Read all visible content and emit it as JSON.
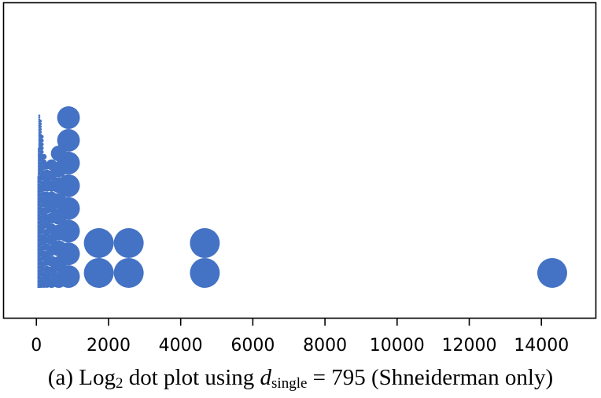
{
  "caption": {
    "prefix": "(a) Log",
    "base": "2",
    "middle": " dot plot using ",
    "var_symbol": "d",
    "var_subscript": "single",
    "suffix": " = 795 (Shneiderman only)"
  },
  "chart_data": {
    "type": "scatter",
    "xlim": [
      -900,
      15500
    ],
    "x_ticks": [
      0,
      2000,
      4000,
      6000,
      8000,
      10000,
      12000,
      14000
    ],
    "x_tick_labels": [
      "0",
      "2000",
      "4000",
      "6000",
      "8000",
      "10000",
      "12000",
      "14000"
    ],
    "grid": false,
    "legend": "none",
    "color": "#4472c4",
    "columns": [
      {
        "x": 40,
        "count": 110
      },
      {
        "x": 55,
        "count": 100
      },
      {
        "x": 80,
        "count": 85
      },
      {
        "x": 110,
        "count": 60
      },
      {
        "x": 150,
        "count": 40
      },
      {
        "x": 210,
        "count": 25
      },
      {
        "x": 290,
        "count": 17
      },
      {
        "x": 420,
        "count": 12
      },
      {
        "x": 620,
        "count": 9
      },
      {
        "x": 890,
        "count": 8
      },
      {
        "x": 1730,
        "count": 2
      },
      {
        "x": 2560,
        "count": 2
      },
      {
        "x": 4670,
        "count": 2
      },
      {
        "x": 14300,
        "count": 1
      }
    ]
  }
}
